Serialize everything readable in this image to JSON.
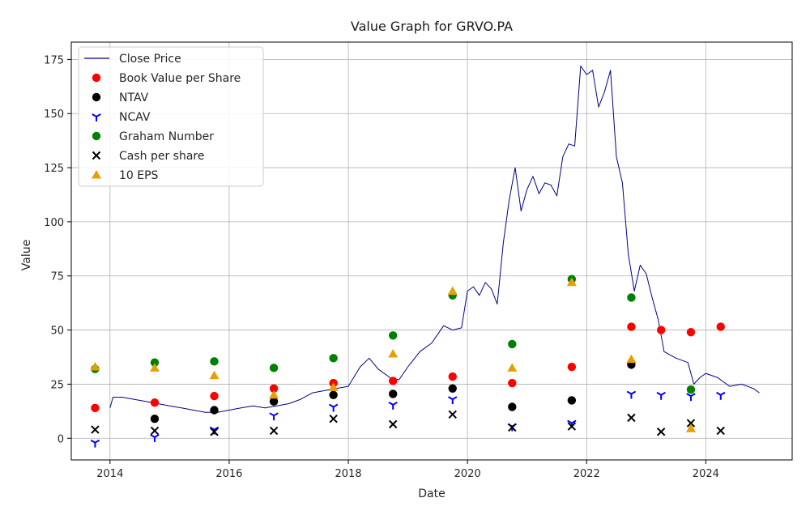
{
  "chart_data": {
    "type": "line+scatter",
    "title": "Value Graph for GRVO.PA",
    "xlabel": "Date",
    "ylabel": "Value",
    "xlim": [
      2013.35,
      2025.45
    ],
    "ylim": [
      -10,
      183
    ],
    "x_ticks": [
      2014,
      2016,
      2018,
      2020,
      2022,
      2024
    ],
    "x_tick_labels": [
      "2014",
      "2016",
      "2018",
      "2020",
      "2022",
      "2024"
    ],
    "y_ticks": [
      0,
      25,
      50,
      75,
      100,
      125,
      150,
      175
    ],
    "y_tick_labels": [
      "0",
      "25",
      "50",
      "75",
      "100",
      "125",
      "150",
      "175"
    ],
    "grid": true,
    "legend_position": "top-left",
    "colors": {
      "close_price": "#00008b",
      "book_value": "#ff0000",
      "ntav": "#000000",
      "ncav": "#0000ff",
      "graham": "#008000",
      "cash": "#000000",
      "eps10": "#e6a000"
    },
    "series": [
      {
        "name": "Close Price",
        "kind": "line",
        "color_key": "close_price",
        "x": [
          2014.0,
          2014.05,
          2014.2,
          2014.4,
          2014.6,
          2014.8,
          2015.0,
          2015.2,
          2015.4,
          2015.6,
          2015.8,
          2016.0,
          2016.2,
          2016.4,
          2016.6,
          2016.8,
          2017.0,
          2017.2,
          2017.4,
          2017.6,
          2017.8,
          2018.0,
          2018.2,
          2018.35,
          2018.5,
          2018.7,
          2018.85,
          2019.0,
          2019.2,
          2019.4,
          2019.6,
          2019.75,
          2019.9,
          2020.0,
          2020.1,
          2020.2,
          2020.3,
          2020.4,
          2020.5,
          2020.6,
          2020.7,
          2020.8,
          2020.9,
          2021.0,
          2021.1,
          2021.2,
          2021.3,
          2021.4,
          2021.5,
          2021.6,
          2021.7,
          2021.8,
          2021.9,
          2022.0,
          2022.1,
          2022.2,
          2022.3,
          2022.4,
          2022.5,
          2022.6,
          2022.7,
          2022.8,
          2022.9,
          2023.0,
          2023.1,
          2023.2,
          2023.3,
          2023.5,
          2023.7,
          2023.8,
          2023.9,
          2024.0,
          2024.2,
          2024.4,
          2024.6,
          2024.8,
          2024.9
        ],
        "y": [
          14,
          19,
          19,
          18,
          17,
          16,
          15,
          14,
          13,
          12,
          12,
          13,
          14,
          15,
          14,
          15,
          16,
          18,
          21,
          22,
          23,
          24,
          33,
          37,
          32,
          28,
          27,
          33,
          40,
          44,
          52,
          50,
          51,
          68,
          70,
          66,
          72,
          69,
          62,
          90,
          110,
          125,
          105,
          115,
          121,
          113,
          118,
          117,
          112,
          130,
          136,
          135,
          172,
          168,
          170,
          153,
          160,
          170,
          130,
          118,
          85,
          68,
          80,
          76,
          65,
          55,
          40,
          37,
          35,
          25,
          28,
          30,
          28,
          24,
          25,
          23,
          21
        ]
      },
      {
        "name": "Book Value per Share",
        "kind": "scatter",
        "marker": "circle",
        "color_key": "book_value",
        "x": [
          2013.75,
          2014.75,
          2015.75,
          2016.75,
          2017.75,
          2018.75,
          2019.75,
          2020.75,
          2021.75,
          2022.75,
          2023.25,
          2023.75,
          2024.25
        ],
        "y": [
          14,
          16.5,
          19.5,
          23,
          25.5,
          26.5,
          28.5,
          25.5,
          33,
          51.5,
          50,
          49,
          51.5
        ]
      },
      {
        "name": "NTAV",
        "kind": "scatter",
        "marker": "circle",
        "color_key": "ntav",
        "x": [
          2014.75,
          2015.75,
          2016.75,
          2017.75,
          2018.75,
          2019.75,
          2020.75,
          2021.75,
          2022.75
        ],
        "y": [
          9,
          13,
          17,
          20,
          20.5,
          23,
          14.5,
          17.5,
          34
        ]
      },
      {
        "name": "NCAV",
        "kind": "scatter",
        "marker": "tri_down",
        "color_key": "ncav",
        "x": [
          2013.75,
          2014.75,
          2015.75,
          2016.75,
          2017.75,
          2018.75,
          2019.75,
          2020.75,
          2021.75,
          2022.75,
          2023.25,
          2023.75,
          2024.25
        ],
        "y": [
          -2,
          0.5,
          4,
          10.5,
          14.5,
          15.5,
          18,
          5.5,
          7,
          20.5,
          20,
          19.5,
          20
        ]
      },
      {
        "name": "Graham Number",
        "kind": "scatter",
        "marker": "circle",
        "color_key": "graham",
        "x": [
          2013.75,
          2014.75,
          2015.75,
          2016.75,
          2017.75,
          2018.75,
          2019.75,
          2020.75,
          2021.75,
          2022.75,
          2023.75
        ],
        "y": [
          32,
          35,
          35.5,
          32.5,
          37,
          47.5,
          66,
          43.5,
          73.5,
          65,
          22.5
        ]
      },
      {
        "name": "Cash per share",
        "kind": "scatter",
        "marker": "x",
        "color_key": "cash",
        "x": [
          2013.75,
          2014.75,
          2015.75,
          2016.75,
          2017.75,
          2018.75,
          2019.75,
          2020.75,
          2021.75,
          2022.75,
          2023.25,
          2023.75,
          2024.25
        ],
        "y": [
          4,
          3.5,
          3,
          3.5,
          9,
          6.5,
          11,
          5,
          5.5,
          9.5,
          3,
          7,
          3.5
        ]
      },
      {
        "name": "10 EPS",
        "kind": "scatter",
        "marker": "triangle_up",
        "color_key": "eps10",
        "x": [
          2013.75,
          2014.75,
          2015.75,
          2016.75,
          2017.75,
          2018.75,
          2019.75,
          2020.75,
          2021.75,
          2022.75,
          2023.75
        ],
        "y": [
          33,
          32.5,
          29,
          20,
          23.5,
          39,
          68,
          32.5,
          72,
          36.5,
          4.5
        ]
      }
    ]
  }
}
